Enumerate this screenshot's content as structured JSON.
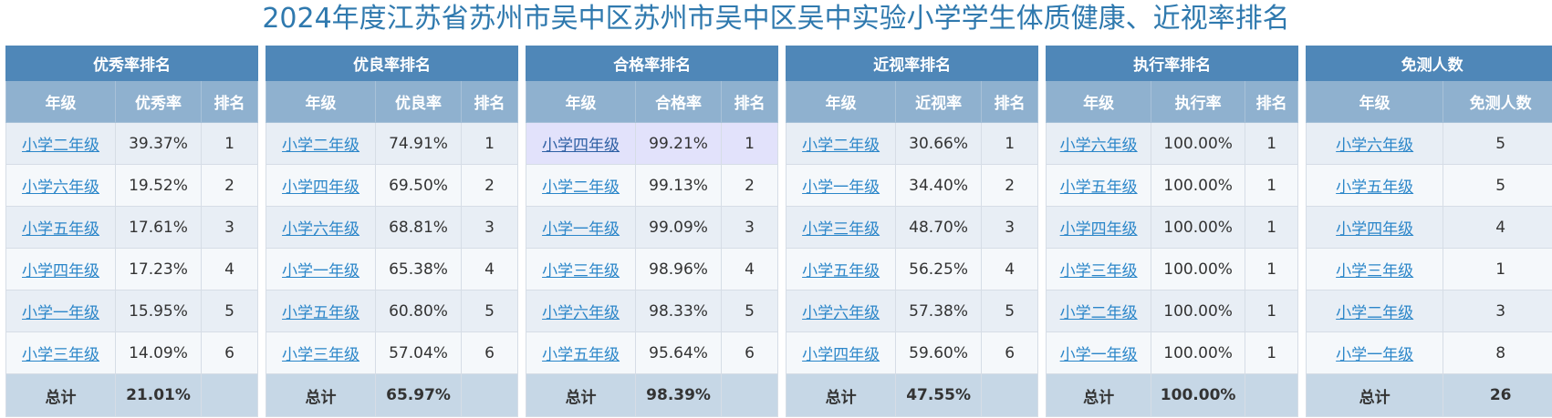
{
  "title": "2024年度江苏省苏州市吴中区苏州市吴中区吴中实验小学学生体质健康、近视率排名",
  "tables": [
    {
      "header": "优秀率排名",
      "columns": [
        "年级",
        "优秀率",
        "排名"
      ],
      "rows": [
        [
          "小学二年级",
          "39.37%",
          "1"
        ],
        [
          "小学六年级",
          "19.52%",
          "2"
        ],
        [
          "小学五年级",
          "17.61%",
          "3"
        ],
        [
          "小学四年级",
          "17.23%",
          "4"
        ],
        [
          "小学一年级",
          "15.95%",
          "5"
        ],
        [
          "小学三年级",
          "14.09%",
          "6"
        ]
      ],
      "total": [
        "总计",
        "21.01%",
        ""
      ]
    },
    {
      "header": "优良率排名",
      "columns": [
        "年级",
        "优良率",
        "排名"
      ],
      "rows": [
        [
          "小学二年级",
          "74.91%",
          "1"
        ],
        [
          "小学四年级",
          "69.50%",
          "2"
        ],
        [
          "小学六年级",
          "68.81%",
          "3"
        ],
        [
          "小学一年级",
          "65.38%",
          "4"
        ],
        [
          "小学五年级",
          "60.80%",
          "5"
        ],
        [
          "小学三年级",
          "57.04%",
          "6"
        ]
      ],
      "total": [
        "总计",
        "65.97%",
        ""
      ]
    },
    {
      "header": "合格率排名",
      "columns": [
        "年级",
        "合格率",
        "排名"
      ],
      "rows": [
        [
          "小学四年级",
          "99.21%",
          "1"
        ],
        [
          "小学二年级",
          "99.13%",
          "2"
        ],
        [
          "小学一年级",
          "99.09%",
          "3"
        ],
        [
          "小学三年级",
          "98.96%",
          "4"
        ],
        [
          "小学六年级",
          "98.33%",
          "5"
        ],
        [
          "小学五年级",
          "95.64%",
          "6"
        ]
      ],
      "total": [
        "总计",
        "98.39%",
        ""
      ]
    },
    {
      "header": "近视率排名",
      "columns": [
        "年级",
        "近视率",
        "排名"
      ],
      "rows": [
        [
          "小学二年级",
          "30.66%",
          "1"
        ],
        [
          "小学一年级",
          "34.40%",
          "2"
        ],
        [
          "小学三年级",
          "48.70%",
          "3"
        ],
        [
          "小学五年级",
          "56.25%",
          "4"
        ],
        [
          "小学六年级",
          "57.38%",
          "5"
        ],
        [
          "小学四年级",
          "59.60%",
          "6"
        ]
      ],
      "total": [
        "总计",
        "47.55%",
        ""
      ]
    },
    {
      "header": "执行率排名",
      "columns": [
        "年级",
        "执行率",
        "排名"
      ],
      "rows": [
        [
          "小学六年级",
          "100.00%",
          "1"
        ],
        [
          "小学五年级",
          "100.00%",
          "1"
        ],
        [
          "小学四年级",
          "100.00%",
          "1"
        ],
        [
          "小学三年级",
          "100.00%",
          "1"
        ],
        [
          "小学二年级",
          "100.00%",
          "1"
        ],
        [
          "小学一年级",
          "100.00%",
          "1"
        ]
      ],
      "total": [
        "总计",
        "100.00%",
        ""
      ]
    },
    {
      "header": "免测人数",
      "columns": [
        "年级",
        "免测人数"
      ],
      "rows": [
        [
          "小学六年级",
          "5"
        ],
        [
          "小学五年级",
          "5"
        ],
        [
          "小学四年级",
          "4"
        ],
        [
          "小学三年级",
          "1"
        ],
        [
          "小学二年级",
          "3"
        ],
        [
          "小学一年级",
          "8"
        ]
      ],
      "total": [
        "总计",
        "26"
      ]
    }
  ]
}
